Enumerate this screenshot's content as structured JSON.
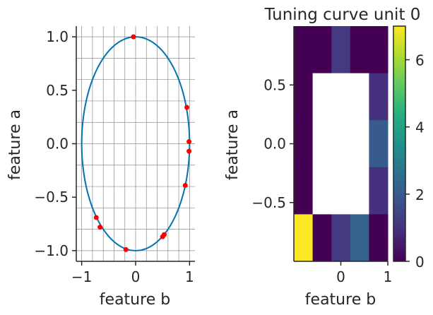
{
  "chart_data": [
    {
      "type": "scatter",
      "title": "",
      "xlabel": "feature b",
      "ylabel": "feature a",
      "xlim": [
        -1.1,
        1.1
      ],
      "ylim": [
        -1.1,
        1.1
      ],
      "xticks": [
        -1,
        0,
        1
      ],
      "xtick_labels": [
        "−1",
        "0",
        "1"
      ],
      "yticks": [
        1,
        0.5,
        0,
        -0.5,
        -1
      ],
      "ytick_labels": [
        "1.0",
        "0.5",
        "0.0",
        "−0.5",
        "−1.0"
      ],
      "grid": true,
      "curve": {
        "name": "ellipse",
        "color": "#0072b2",
        "x_radius": 1.0,
        "y_radius": 1.0,
        "x_center": 0.0,
        "y_center": 0.0
      },
      "points": {
        "color": "#ff0000",
        "x": [
          -0.04,
          0.95,
          0.99,
          0.99,
          0.92,
          -0.73,
          -0.66,
          -0.18,
          0.5,
          0.53
        ],
        "y": [
          1.0,
          0.34,
          0.02,
          -0.07,
          -0.39,
          -0.69,
          -0.78,
          -0.99,
          -0.87,
          -0.85
        ]
      }
    },
    {
      "type": "heatmap",
      "title": "Tuning curve unit 0",
      "xlabel": "feature b",
      "ylabel": "feature a",
      "colormap": "viridis",
      "xlim": [
        -1.0,
        1.0
      ],
      "ylim": [
        -1.0,
        1.0
      ],
      "xticks": [
        0,
        1
      ],
      "xtick_labels": [
        "0",
        "1"
      ],
      "yticks": [
        0.5,
        0,
        -0.5
      ],
      "ytick_labels": [
        "0.5",
        "0.0",
        "−0.5"
      ],
      "nrows": 5,
      "ncols": 5,
      "rows_top_to_bottom": [
        [
          0,
          0,
          1.2,
          0,
          0
        ],
        [
          0,
          null,
          null,
          null,
          1
        ],
        [
          0,
          null,
          null,
          null,
          2
        ],
        [
          0,
          null,
          null,
          null,
          1
        ],
        [
          7,
          0,
          1.2,
          2.2,
          0
        ]
      ],
      "colorbar": {
        "min": 0,
        "max": 7,
        "ticks": [
          0,
          2,
          4,
          6
        ],
        "tick_labels": [
          "0",
          "2",
          "4",
          "6"
        ]
      }
    }
  ]
}
